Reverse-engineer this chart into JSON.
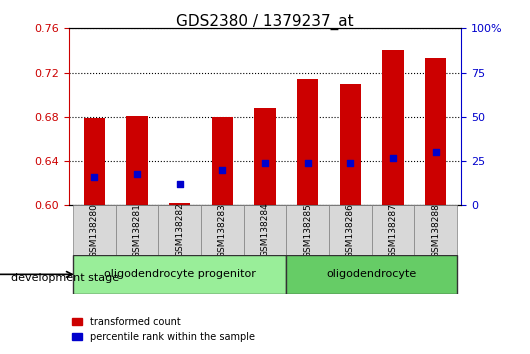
{
  "title": "GDS2380 / 1379237_at",
  "samples": [
    "GSM138280",
    "GSM138281",
    "GSM138282",
    "GSM138283",
    "GSM138284",
    "GSM138285",
    "GSM138286",
    "GSM138287",
    "GSM138288"
  ],
  "transformed_count": [
    0.679,
    0.681,
    0.602,
    0.68,
    0.688,
    0.714,
    0.71,
    0.74,
    0.733
  ],
  "percentile_rank": [
    0.626,
    0.628,
    0.619,
    0.632,
    0.638,
    0.638,
    0.638,
    0.643,
    0.648
  ],
  "ylim_left": [
    0.6,
    0.76
  ],
  "ylim_right": [
    0,
    100
  ],
  "yticks_left": [
    0.6,
    0.64,
    0.68,
    0.72,
    0.76
  ],
  "yticks_right": [
    0,
    25,
    50,
    75,
    100
  ],
  "ytick_labels_right": [
    "0",
    "25",
    "50",
    "75",
    "100%"
  ],
  "bar_color": "#cc0000",
  "dot_color": "#0000cc",
  "bar_width": 0.5,
  "groups": [
    {
      "label": "oligodendrocyte progenitor",
      "start": 0,
      "end": 4,
      "color": "#99ee99"
    },
    {
      "label": "oligodendrocyte",
      "start": 5,
      "end": 8,
      "color": "#66cc66"
    }
  ],
  "xlabel": "development stage",
  "legend_items": [
    {
      "label": "transformed count",
      "color": "#cc0000"
    },
    {
      "label": "percentile rank within the sample",
      "color": "#0000cc"
    }
  ]
}
